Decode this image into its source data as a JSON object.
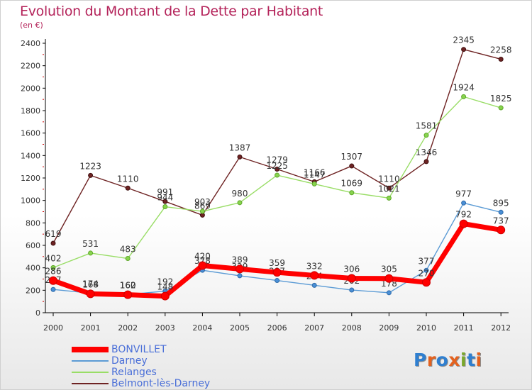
{
  "title": "Evolution du Montant de la Dette par Habitant",
  "subtitle": "(en €)",
  "logo": {
    "text": "Proxiti",
    "colors": [
      "#2f7fd0",
      "#e4611e",
      "#2f7fd0",
      "#e4611e",
      "#7aa82c",
      "#2f7fd0",
      "#e4611e"
    ]
  },
  "chart_data": {
    "type": "line",
    "title": "Evolution du Montant de la Dette par Habitant",
    "ylabel": "(en €)",
    "xlabel": "",
    "ylim": [
      0,
      2400
    ],
    "yticks": [
      "0",
      "200",
      "400",
      "600",
      "800",
      "1000",
      "1200",
      "1400",
      "1600",
      "1800",
      "2000",
      "2200",
      "2400"
    ],
    "categories": [
      "2000",
      "2001",
      "2002",
      "2003",
      "2004",
      "2005",
      "2006",
      "2007",
      "2008",
      "2009",
      "2010",
      "2011",
      "2012"
    ],
    "series": [
      {
        "name": "Belmont-lès-Darney",
        "color": "#6e2323",
        "values": [
          619,
          1223,
          1110,
          991,
          869,
          1387,
          1279,
          1166,
          1307,
          1110,
          1346,
          2345,
          2258
        ]
      },
      {
        "name": "Relanges",
        "color": "#99dd66",
        "values": [
          402,
          531,
          483,
          944,
          903,
          980,
          1225,
          1147,
          1069,
          1021,
          1581,
          1924,
          1825
        ]
      },
      {
        "name": "Darney",
        "color": "#5b9bd5",
        "values": [
          207,
          174,
          162,
          192,
          378,
          329,
          287,
          244,
          202,
          178,
          377,
          977,
          895
        ]
      },
      {
        "name": "BONVILLET",
        "color": "#ff0000",
        "values": [
          286,
          168,
          160,
          148,
          420,
          389,
          359,
          332,
          306,
          305,
          270,
          792,
          737
        ]
      }
    ],
    "legend": [
      "BONVILLET",
      "Darney",
      "Relanges",
      "Belmont-lès-Darney"
    ],
    "legend_position": "bottom-left",
    "grid": false
  }
}
